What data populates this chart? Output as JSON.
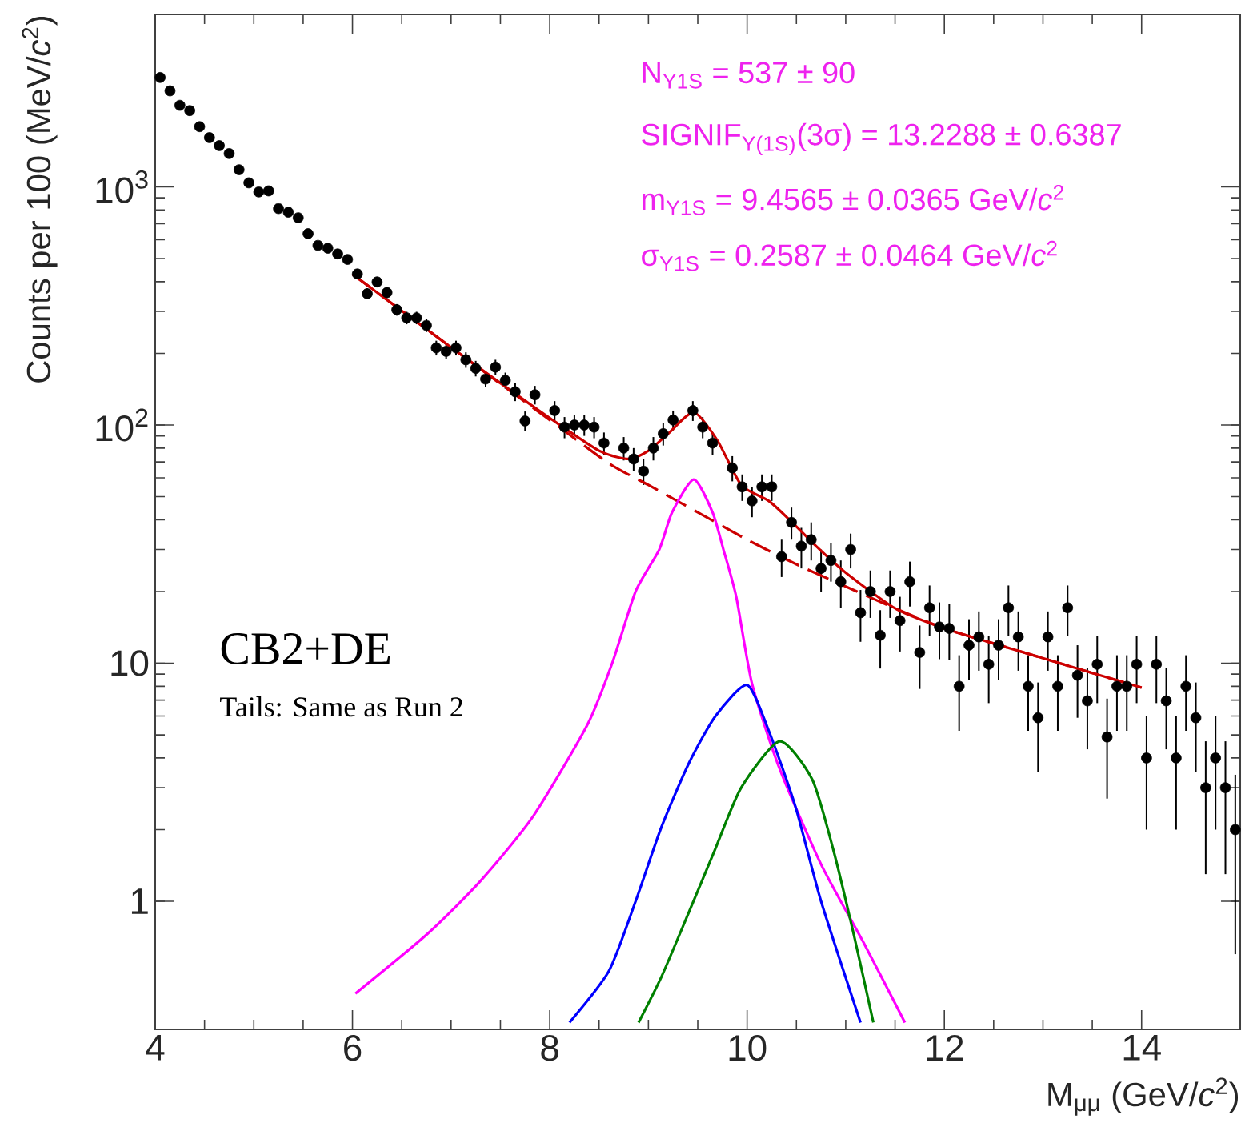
{
  "chart_data": {
    "type": "scatter",
    "xlabel": "M$_{μμ}$ (GeV/*c*$^{2}$)",
    "ylabel": "Counts per 100 (MeV/*c*$^{2}$)",
    "log": "y",
    "xlim": [
      4,
      15
    ],
    "ylim": [
      0.29,
      5300
    ],
    "xticks": [
      4,
      6,
      8,
      10,
      12,
      14
    ],
    "yticks": [
      1,
      10,
      {
        "value": 100,
        "label": "10$^{2}$"
      },
      {
        "value": 1000,
        "label": "10$^{3}$"
      }
    ],
    "annotations": [
      "N$_{Υ1S}$ = 537 ± 90",
      "SIGNIF$_{Υ(1S)}$(3σ) = 13.2288 ± 0.6387",
      "m$_{Υ1S}$ = 9.4565 ± 0.0365 GeV/*c*$^{2}$",
      "σ$_{Υ1S}$ = 0.2587 ± 0.0464 GeV/*c*$^{2}$",
      "CB2+DE",
      "Tails: Same as Run 2"
    ],
    "series": [
      {
        "type": "scatter",
        "marker": "circle",
        "color": "#000000",
        "x": [
          4.05,
          4.15,
          4.25,
          4.35,
          4.45,
          4.55,
          4.65,
          4.75,
          4.85,
          4.95,
          5.05,
          5.15,
          5.25,
          5.35,
          5.45,
          5.55,
          5.65,
          5.75,
          5.85,
          5.95,
          6.05,
          6.15,
          6.25,
          6.35,
          6.45,
          6.55,
          6.65,
          6.75,
          6.85,
          6.95,
          7.05,
          7.15,
          7.25,
          7.35,
          7.45,
          7.55,
          7.65,
          7.75,
          7.85,
          8.05,
          8.15,
          8.25,
          8.35,
          8.45,
          8.55,
          8.75,
          8.85,
          8.95,
          9.05,
          9.15,
          9.25,
          9.45,
          9.55,
          9.65,
          9.85,
          9.95,
          10.05,
          10.15,
          10.25,
          10.35,
          10.45,
          10.55,
          10.65,
          10.75,
          10.85,
          10.95,
          11.05,
          11.15,
          11.25,
          11.35,
          11.45,
          11.55,
          11.65,
          11.75,
          11.85,
          11.95,
          12.05,
          12.15,
          12.25,
          12.35,
          12.45,
          12.55,
          12.65,
          12.75,
          12.85,
          12.95,
          13.05,
          13.15,
          13.25,
          13.35,
          13.45,
          13.55,
          13.65,
          13.75,
          13.85,
          13.95,
          14.05,
          14.15,
          14.25,
          14.35,
          14.45,
          14.55,
          14.65,
          14.75,
          14.85,
          14.95
        ],
        "values": [
          2880,
          2530,
          2200,
          2090,
          1790,
          1610,
          1490,
          1380,
          1180,
          1040,
          952,
          962,
          811,
          783,
          742,
          636,
          568,
          553,
          523,
          496,
          431,
          356,
          399,
          360,
          305,
          282,
          282,
          262,
          211,
          204,
          211,
          188,
          173,
          156,
          175,
          154,
          138,
          104,
          134,
          115,
          98,
          100,
          100,
          98,
          84,
          80,
          72,
          64,
          80,
          92,
          105,
          115,
          98,
          84,
          66,
          55,
          48,
          55,
          55,
          28,
          39,
          31,
          33,
          25,
          27,
          22,
          30,
          16.3,
          20,
          13.1,
          20,
          15.1,
          22,
          11.1,
          17.1,
          14.2,
          14,
          8,
          11.9,
          12.9,
          9.9,
          11.9,
          17.1,
          12.9,
          8,
          5.9,
          12.9,
          8,
          17.1,
          8.9,
          6.95,
          9.9,
          4.9,
          8,
          8,
          9.9,
          4,
          9.9,
          6.95,
          4,
          8,
          5.9,
          3,
          4,
          3,
          2
        ],
        "errors": [
          null,
          null,
          null,
          null,
          null,
          null,
          null,
          null,
          null,
          null,
          null,
          null,
          null,
          null,
          null,
          null,
          null,
          null,
          null,
          null,
          21,
          19,
          20,
          19,
          17,
          17,
          17,
          16,
          15,
          14,
          15,
          14,
          13,
          12,
          13,
          12,
          12,
          10,
          12,
          11,
          10,
          10,
          10,
          10,
          9,
          9,
          8,
          8,
          9,
          10,
          10,
          11,
          10,
          9,
          8,
          7,
          7,
          7,
          7,
          5,
          6,
          6,
          6,
          5,
          5,
          5,
          5,
          4,
          4.5,
          3.6,
          4.5,
          3.9,
          4.7,
          3.3,
          4.1,
          3.8,
          3.7,
          2.8,
          3.4,
          3.6,
          3.1,
          3.4,
          4.1,
          3.6,
          2.8,
          2.4,
          3.6,
          2.8,
          4.1,
          3,
          2.6,
          3.1,
          2.2,
          2.8,
          2.8,
          3.1,
          2,
          3.1,
          2.6,
          2,
          2.8,
          2.4,
          1.7,
          2,
          1.7,
          1.4
        ]
      },
      {
        "type": "line",
        "marker": "none",
        "line_style": "dashed",
        "color": "#cc0000",
        "x": [
          6,
          6.5,
          7,
          7.5,
          8,
          8.6,
          9,
          9.5,
          10,
          10.5,
          11,
          11.5,
          12,
          12.5,
          13,
          13.5,
          14
        ],
        "values": [
          430,
          302,
          212,
          149,
          105,
          69,
          56,
          43,
          33,
          26,
          21,
          17,
          14,
          12.1,
          10.5,
          9.1,
          7.9
        ]
      },
      {
        "type": "line",
        "marker": "none",
        "line_style": "solid",
        "color": "#ff00ff",
        "x": [
          6.03,
          6.76,
          7.3,
          7.83,
          8.38,
          8.64,
          8.87,
          9.11,
          9.24,
          9.46,
          9.65,
          9.76,
          9.89,
          10.05,
          10.33,
          10.75,
          11.19,
          11.6
        ],
        "values": [
          0.41,
          0.73,
          1.22,
          2.27,
          5.5,
          10.2,
          20,
          30,
          43,
          59,
          43,
          30,
          19,
          8.2,
          3.6,
          1.43,
          0.66,
          0.31
        ]
      },
      {
        "type": "line",
        "marker": "none",
        "line_style": "solid",
        "color": "#0000ff",
        "x": [
          8.2,
          8.6,
          8.87,
          9.13,
          9.41,
          9.68,
          10.0,
          10.22,
          10.49,
          10.75,
          11.15
        ],
        "values": [
          0.31,
          0.51,
          1.0,
          2.04,
          3.8,
          6.0,
          8.1,
          5.2,
          2.5,
          1.0,
          0.31
        ]
      },
      {
        "type": "line",
        "marker": "none",
        "line_style": "solid",
        "color": "#008000",
        "x": [
          8.9,
          9.13,
          9.41,
          9.68,
          9.94,
          10.33,
          10.66,
          10.87,
          11.08,
          11.28
        ],
        "values": [
          0.31,
          0.48,
          0.9,
          1.67,
          3.0,
          4.7,
          3.25,
          1.67,
          0.73,
          0.31
        ]
      },
      {
        "type": "line",
        "marker": "none",
        "line_style": "solid",
        "color": "#cc0000",
        "x": [
          6,
          6.5,
          7,
          7.5,
          8,
          8.5,
          8.8,
          9.0,
          9.2,
          9.46,
          9.7,
          9.94,
          10.22,
          10.43,
          10.7,
          11,
          11.5,
          12,
          12.5,
          13,
          13.5,
          14
        ],
        "values": [
          430,
          302,
          212,
          150,
          107,
          78,
          72,
          78,
          92,
          113,
          86,
          56,
          48,
          40,
          31,
          24,
          17,
          14,
          12.1,
          10.5,
          9.1,
          7.9
        ]
      }
    ]
  }
}
